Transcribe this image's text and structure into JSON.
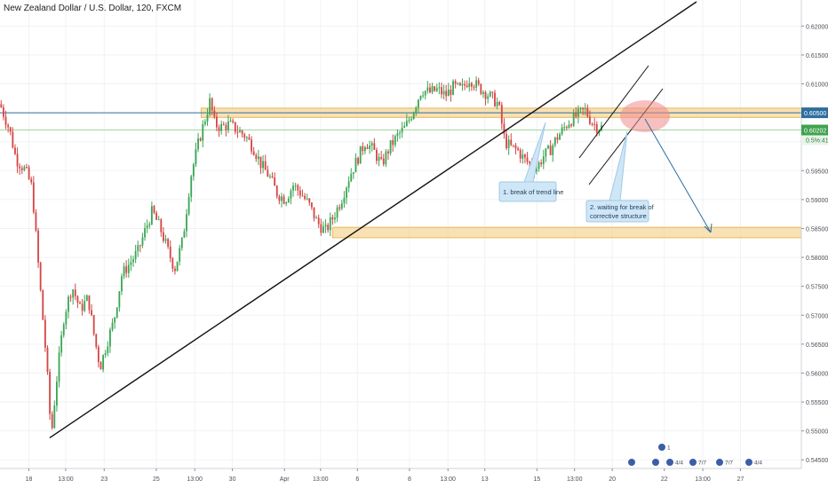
{
  "chart_data": {
    "type": "candlestick",
    "title": "New Zealand Dollar / U.S. Dollar, 120, FXCM",
    "y_ticks": [
      0.545,
      0.55,
      0.555,
      0.56,
      0.565,
      0.57,
      0.575,
      0.58,
      0.585,
      0.59,
      0.595,
      0.6,
      0.605,
      0.61,
      0.615,
      0.62
    ],
    "y_tick_labels": [
      "0.54500",
      "0.55000",
      "0.55500",
      "0.56000",
      "0.56500",
      "0.57000",
      "0.57500",
      "0.58000",
      "0.58500",
      "0.59000",
      "0.59500",
      "0.60000",
      "0.60500",
      "0.61000",
      "0.61500",
      "0.62000"
    ],
    "ylim": [
      0.5435,
      0.6245
    ],
    "x_ticks": [
      {
        "label": "18",
        "pos": 0.036
      },
      {
        "label": "13:00",
        "pos": 0.082
      },
      {
        "label": "23",
        "pos": 0.13
      },
      {
        "label": "25",
        "pos": 0.195
      },
      {
        "label": "13:00",
        "pos": 0.243
      },
      {
        "label": "30",
        "pos": 0.29
      },
      {
        "label": "Apr",
        "pos": 0.355
      },
      {
        "label": "13:00",
        "pos": 0.4
      },
      {
        "label": "6",
        "pos": 0.446
      },
      {
        "label": "8",
        "pos": 0.511
      },
      {
        "label": "13:00",
        "pos": 0.559
      },
      {
        "label": "13",
        "pos": 0.605
      },
      {
        "label": "15",
        "pos": 0.67
      },
      {
        "label": "13:00",
        "pos": 0.717
      },
      {
        "label": "20",
        "pos": 0.764
      },
      {
        "label": "22",
        "pos": 0.829
      },
      {
        "label": "13:00",
        "pos": 0.877
      },
      {
        "label": "27",
        "pos": 0.924
      }
    ],
    "price_path": [
      [
        0.0,
        0.6065
      ],
      [
        0.012,
        0.602
      ],
      [
        0.02,
        0.597
      ],
      [
        0.032,
        0.595
      ],
      [
        0.04,
        0.592
      ],
      [
        0.05,
        0.575
      ],
      [
        0.058,
        0.562
      ],
      [
        0.064,
        0.549
      ],
      [
        0.07,
        0.558
      ],
      [
        0.08,
        0.57
      ],
      [
        0.09,
        0.575
      ],
      [
        0.1,
        0.571
      ],
      [
        0.11,
        0.573
      ],
      [
        0.118,
        0.566
      ],
      [
        0.125,
        0.561
      ],
      [
        0.133,
        0.565
      ],
      [
        0.142,
        0.569
      ],
      [
        0.152,
        0.577
      ],
      [
        0.162,
        0.579
      ],
      [
        0.172,
        0.581
      ],
      [
        0.182,
        0.585
      ],
      [
        0.19,
        0.588
      ],
      [
        0.2,
        0.585
      ],
      [
        0.21,
        0.581
      ],
      [
        0.218,
        0.578
      ],
      [
        0.228,
        0.583
      ],
      [
        0.238,
        0.594
      ],
      [
        0.248,
        0.6
      ],
      [
        0.256,
        0.604
      ],
      [
        0.262,
        0.607
      ],
      [
        0.268,
        0.603
      ],
      [
        0.276,
        0.6025
      ],
      [
        0.286,
        0.603
      ],
      [
        0.296,
        0.602
      ],
      [
        0.306,
        0.601
      ],
      [
        0.316,
        0.599
      ],
      [
        0.326,
        0.596
      ],
      [
        0.336,
        0.594
      ],
      [
        0.346,
        0.591
      ],
      [
        0.356,
        0.59
      ],
      [
        0.366,
        0.5925
      ],
      [
        0.376,
        0.591
      ],
      [
        0.386,
        0.589
      ],
      [
        0.396,
        0.586
      ],
      [
        0.406,
        0.5845
      ],
      [
        0.416,
        0.587
      ],
      [
        0.426,
        0.59
      ],
      [
        0.436,
        0.594
      ],
      [
        0.446,
        0.597
      ],
      [
        0.456,
        0.6
      ],
      [
        0.466,
        0.5985
      ],
      [
        0.476,
        0.596
      ],
      [
        0.486,
        0.599
      ],
      [
        0.496,
        0.601
      ],
      [
        0.506,
        0.6025
      ],
      [
        0.516,
        0.6055
      ],
      [
        0.526,
        0.609
      ],
      [
        0.536,
        0.6085
      ],
      [
        0.546,
        0.609
      ],
      [
        0.556,
        0.608
      ],
      [
        0.566,
        0.6095
      ],
      [
        0.576,
        0.609
      ],
      [
        0.586,
        0.611
      ],
      [
        0.596,
        0.6095
      ],
      [
        0.606,
        0.6085
      ],
      [
        0.614,
        0.6075
      ],
      [
        0.622,
        0.6065
      ],
      [
        0.63,
        0.6
      ],
      [
        0.638,
        0.599
      ],
      [
        0.646,
        0.5985
      ],
      [
        0.654,
        0.597
      ],
      [
        0.662,
        0.596
      ],
      [
        0.67,
        0.5955
      ],
      [
        0.678,
        0.5975
      ],
      [
        0.686,
        0.5985
      ],
      [
        0.694,
        0.6005
      ],
      [
        0.702,
        0.602
      ],
      [
        0.71,
        0.6035
      ],
      [
        0.72,
        0.6045
      ],
      [
        0.73,
        0.6055
      ],
      [
        0.738,
        0.6035
      ],
      [
        0.746,
        0.6025
      ],
      [
        0.752,
        0.6025
      ]
    ]
  },
  "current_price": {
    "label": "0.60202",
    "value": 0.60202,
    "color": "#3fa34d"
  },
  "partial_label": "0.5%:41",
  "resistance_label": {
    "label": "0.60500",
    "value": 0.605,
    "color": "#2f6eb5"
  },
  "annotations": [
    {
      "text": "1. break of trend line"
    },
    {
      "text": "2. waiting for break of",
      "text2": "corrective structure"
    }
  ],
  "event_marker_labels": [
    "1",
    "4/4",
    "7/7",
    "7/7",
    "4/4"
  ],
  "colors": {
    "bull": "#3aa654",
    "bear": "#d64545",
    "zone": "#f6d79b",
    "zone_border": "#e7b95c",
    "trend": "#111111",
    "arrow": "#2c6e9e",
    "target_circle": "#f08b8b",
    "callout_fill": "#cfe6f6",
    "callout_border": "#9fc9e8"
  }
}
